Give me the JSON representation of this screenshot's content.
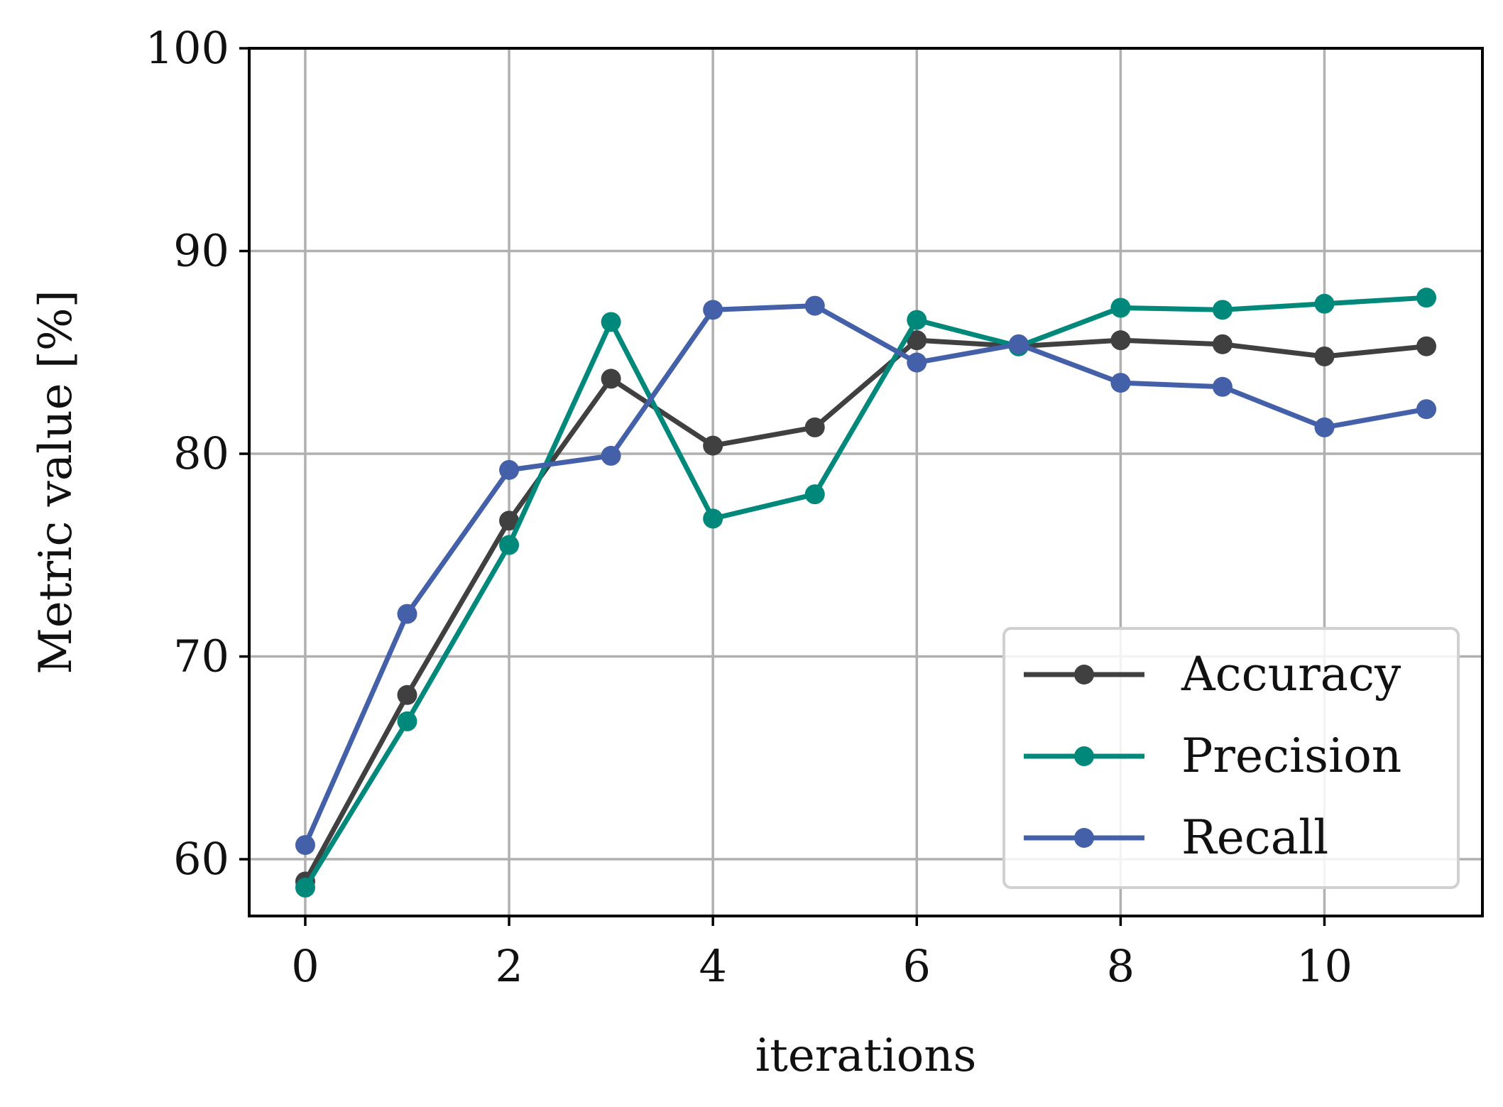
{
  "chart_data": {
    "type": "line",
    "title": "",
    "xlabel": "iterations",
    "ylabel": "Metric value [%]",
    "x": [
      0,
      1,
      2,
      3,
      4,
      5,
      6,
      7,
      8,
      9,
      10,
      11
    ],
    "xlim": [
      -0.55,
      11.55
    ],
    "ylim": [
      57.2,
      100
    ],
    "xticks": [
      0,
      2,
      4,
      6,
      8,
      10
    ],
    "yticks": [
      60,
      70,
      80,
      90,
      100
    ],
    "grid": true,
    "legend_position": "lower-right",
    "series": [
      {
        "name": "Accuracy",
        "color": "#404040",
        "values": [
          58.9,
          68.1,
          76.7,
          83.7,
          80.4,
          81.3,
          85.6,
          85.3,
          85.6,
          85.4,
          84.8,
          85.3
        ]
      },
      {
        "name": "Precision",
        "color": "#00897B",
        "values": [
          58.6,
          66.8,
          75.5,
          86.5,
          76.8,
          78.0,
          86.6,
          85.3,
          87.2,
          87.1,
          87.4,
          87.7
        ]
      },
      {
        "name": "Recall",
        "color": "#4460A8",
        "values": [
          60.7,
          72.1,
          79.2,
          79.9,
          87.1,
          87.3,
          84.5,
          85.4,
          83.5,
          83.3,
          81.3,
          82.2
        ]
      }
    ]
  }
}
